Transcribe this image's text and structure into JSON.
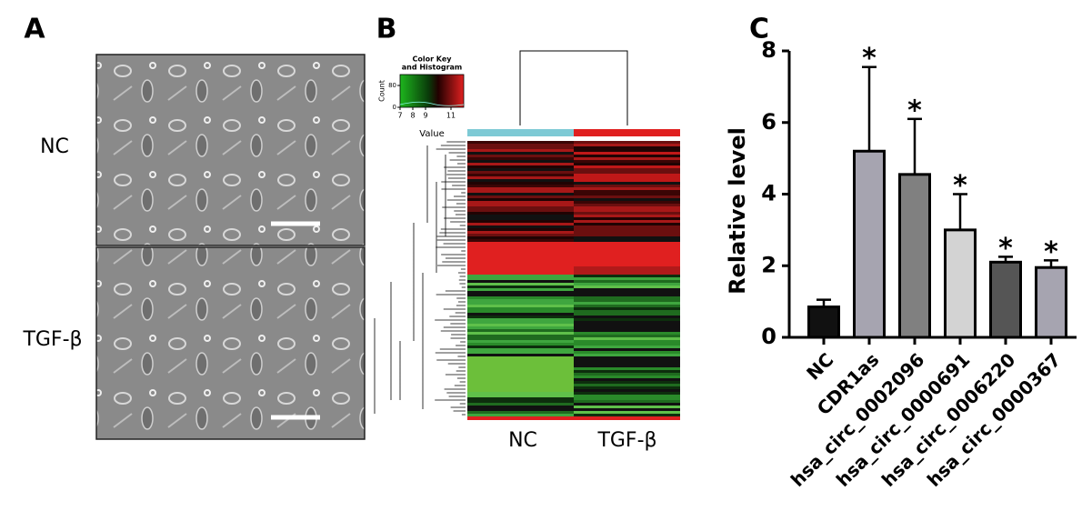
{
  "panels": {
    "a": {
      "letter": "A",
      "rows": [
        "NC",
        "TGF-β"
      ]
    },
    "b": {
      "letter": "B",
      "columns": [
        "NC",
        "TGF-β"
      ],
      "color_key": {
        "title": [
          "Color Key",
          "and Histogram"
        ],
        "ylabel": "Count",
        "xlabel": "Value",
        "xlim": [
          7,
          12
        ],
        "xticks": [
          7,
          8,
          9,
          11
        ],
        "ylim": [
          0,
          120
        ],
        "yticks": [
          0,
          80
        ]
      }
    },
    "c": {
      "letter": "C"
    }
  },
  "chart_data": {
    "type": "bar",
    "ylabel": "Relative level",
    "categories": [
      "NC",
      "CDR1as",
      "hsa_circ_0002096",
      "hsa_circ_0000691",
      "hsa_circ_0006220",
      "hsa_circ_0000367"
    ],
    "values": [
      0.85,
      5.2,
      4.55,
      3.0,
      2.1,
      1.95
    ],
    "errors": [
      0.2,
      2.35,
      1.55,
      1.0,
      0.15,
      0.2
    ],
    "colors": [
      "#111111",
      "#a6a4b0",
      "#808080",
      "#d3d3d3",
      "#555555",
      "#a6a4b0"
    ],
    "significance": [
      null,
      "*",
      "*",
      "*",
      "*",
      "*"
    ],
    "ylim": [
      0,
      8
    ],
    "yticks": [
      0,
      2,
      4,
      6,
      8
    ]
  }
}
